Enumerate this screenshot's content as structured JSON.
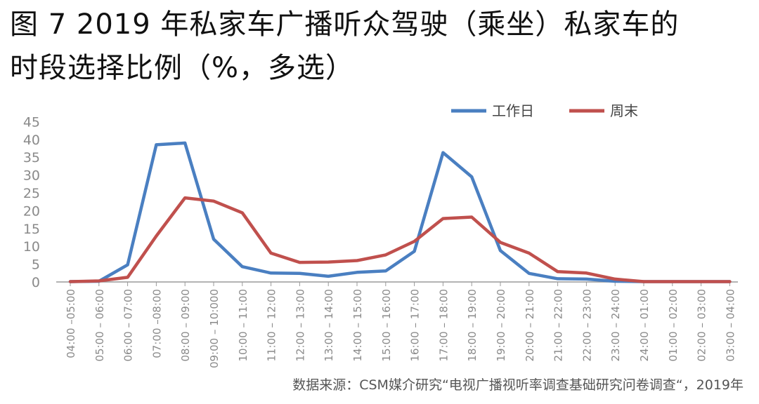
{
  "title": {
    "line1": "图 7 2019 年私家车广播听众驾驶（乘坐）私家车的",
    "line2": "时段选择比例（%，多选）"
  },
  "source": "数据来源：CSM媒介研究“电视广播视听率调查基础研究问卷调查“，2019年",
  "colors": {
    "series1": "#4a7fc1",
    "series2": "#c0504d",
    "axis": "#9a9a9a",
    "tick_text": "#8a8a8a"
  },
  "chart_data": {
    "type": "line",
    "title": "",
    "xlabel": "",
    "ylabel": "",
    "ylim": [
      0,
      45
    ],
    "yticks": [
      0,
      5,
      10,
      15,
      20,
      25,
      30,
      35,
      40,
      45
    ],
    "grid": false,
    "legend_position": "top-right",
    "categories": [
      "04:00 –05:00",
      "05:00 – 06:00",
      "06:00 – 07:00",
      "07:00 –08:00",
      "08:00 – 09:00",
      "09:00 – 10:000",
      "10:00 – 11:00",
      "11:00 – 12:00",
      "12:00 – 13:00",
      "13:00 – 14:00",
      "14:00 – 15:00",
      "15:00 – 16:00",
      "16:00 – 17:00",
      "17:00 – 18:00",
      "18:00 – 19:00",
      "19:00 – 20:00",
      "20:00 – 21:00",
      "21:00 – 22:00",
      "22:00 – 23:00",
      "23:00 – 24:00",
      "24:00 – 01:00",
      "01:00 – 02:00",
      "02:00 – 03:00",
      "03:00 – 04:00"
    ],
    "series": [
      {
        "name": "工作日",
        "values": [
          0.1,
          0.2,
          4.8,
          38.5,
          39.0,
          12.0,
          4.3,
          2.5,
          2.4,
          1.6,
          2.7,
          3.1,
          8.6,
          36.3,
          29.5,
          8.8,
          2.4,
          0.9,
          0.8,
          0.2,
          0.1,
          0.1,
          0.1,
          0.1
        ]
      },
      {
        "name": "周末",
        "values": [
          0.1,
          0.3,
          1.3,
          12.9,
          23.6,
          22.7,
          19.4,
          8.1,
          5.5,
          5.6,
          6.0,
          7.6,
          11.4,
          17.8,
          18.2,
          11.1,
          8.1,
          2.9,
          2.5,
          0.8,
          0.1,
          0.1,
          0.1,
          0.1
        ]
      }
    ]
  }
}
